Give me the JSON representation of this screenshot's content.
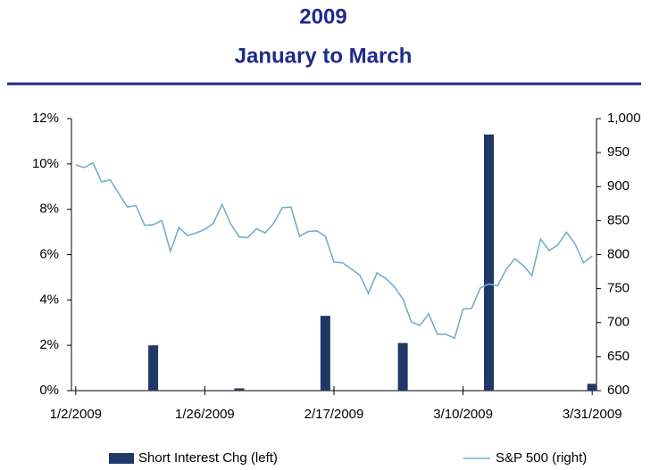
{
  "chart_data": {
    "type": "bar_line",
    "title": "2009",
    "subtitle": "January to March",
    "categories": [
      "1/2/2009",
      null,
      null,
      null,
      null,
      null,
      null,
      null,
      null,
      null,
      null,
      null,
      null,
      null,
      null,
      "1/26/2009",
      null,
      null,
      null,
      null,
      null,
      null,
      null,
      null,
      null,
      null,
      null,
      null,
      null,
      null,
      "2/17/2009",
      null,
      null,
      null,
      null,
      null,
      null,
      null,
      null,
      null,
      null,
      null,
      null,
      null,
      null,
      "3/10/2009",
      null,
      null,
      null,
      null,
      null,
      null,
      null,
      null,
      null,
      null,
      null,
      null,
      null,
      null,
      "3/31/2009"
    ],
    "series": [
      {
        "name": "Short Interest Chg (left)",
        "type": "bar",
        "color": "#1f3868",
        "values": [
          null,
          null,
          null,
          null,
          null,
          null,
          null,
          null,
          null,
          2.0,
          null,
          null,
          null,
          null,
          null,
          null,
          null,
          null,
          null,
          0.1,
          null,
          null,
          null,
          null,
          null,
          null,
          null,
          null,
          null,
          3.3,
          null,
          null,
          null,
          null,
          null,
          null,
          null,
          null,
          2.1,
          null,
          null,
          null,
          null,
          null,
          null,
          null,
          null,
          null,
          11.3,
          null,
          null,
          null,
          null,
          null,
          null,
          null,
          null,
          null,
          null,
          null,
          0.3
        ]
      },
      {
        "name": "S&P 500 (right)",
        "type": "line",
        "axis": "y2",
        "color": "#74aecb",
        "values": [
          932,
          928,
          935,
          907,
          910,
          890,
          870,
          872,
          843,
          844,
          850,
          805,
          840,
          828,
          832,
          837,
          846,
          874,
          845,
          826,
          825,
          838,
          832,
          846,
          869,
          870,
          827,
          834,
          835,
          827,
          789,
          788,
          779,
          770,
          743,
          773,
          765,
          753,
          735,
          701,
          696,
          713,
          683,
          683,
          677,
          720,
          721,
          751,
          757,
          754,
          778,
          794,
          784,
          769,
          823,
          806,
          814,
          833,
          816,
          788,
          798
        ]
      }
    ],
    "ylim": [
      0,
      12
    ],
    "yticks": [
      {
        "value": 0,
        "label": "0%"
      },
      {
        "value": 2,
        "label": "2%"
      },
      {
        "value": 4,
        "label": "4%"
      },
      {
        "value": 6,
        "label": "6%"
      },
      {
        "value": 8,
        "label": "8%"
      },
      {
        "value": 10,
        "label": "10%"
      },
      {
        "value": 12,
        "label": "12%"
      }
    ],
    "y2lim": [
      600,
      1000
    ],
    "y2ticks": [
      600,
      650,
      700,
      750,
      800,
      850,
      900,
      950,
      {
        "value": 1000,
        "label": "1,000"
      }
    ]
  }
}
